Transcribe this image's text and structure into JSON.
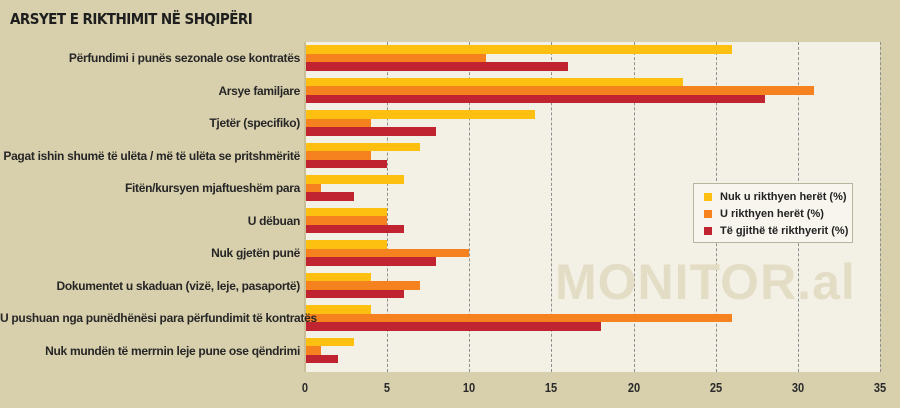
{
  "chart_data": {
    "type": "bar",
    "orientation": "horizontal",
    "title": "ARSYET E RIKTHIMIT NË SHQIPËRI",
    "xlabel": "",
    "ylabel": "",
    "xlim": [
      0,
      35
    ],
    "xticks": [
      "0",
      "5",
      "10",
      "15",
      "20",
      "25",
      "30",
      "35"
    ],
    "grid": true,
    "legend_position": "right",
    "categories": [
      "Përfundimi i punës sezonale ose kontratës",
      "Arsye familjare",
      "Tjetër (specifiko)",
      "Pagat ishin shumë të ulëta / më të ulëta se pritshmëritë",
      "Fitën/kursyen mjaftueshëm para",
      "U dëbuan",
      "Nuk gjetën punë",
      "Dokumentet u skaduan (vizë, leje, pasaportë)",
      "U pushuan nga punëdhënësi para përfundimit të kontratës",
      "Nuk mundën të merrnin leje pune ose qëndrimi"
    ],
    "series": [
      {
        "name": "Nuk u rikthyen herët (%)",
        "color": "#fdc010",
        "values": [
          26,
          23,
          14,
          7,
          6,
          5,
          5,
          4,
          4,
          3
        ]
      },
      {
        "name": "U rikthyen herët (%)",
        "color": "#f5821f",
        "values": [
          11,
          31,
          4,
          4,
          1,
          5,
          10,
          7,
          26,
          1
        ]
      },
      {
        "name": "Të gjithë të rikthyerit (%)",
        "color": "#bf2430",
        "values": [
          16,
          28,
          8,
          5,
          3,
          6,
          8,
          6,
          18,
          2
        ]
      }
    ],
    "watermark": "MONITOR.al"
  }
}
